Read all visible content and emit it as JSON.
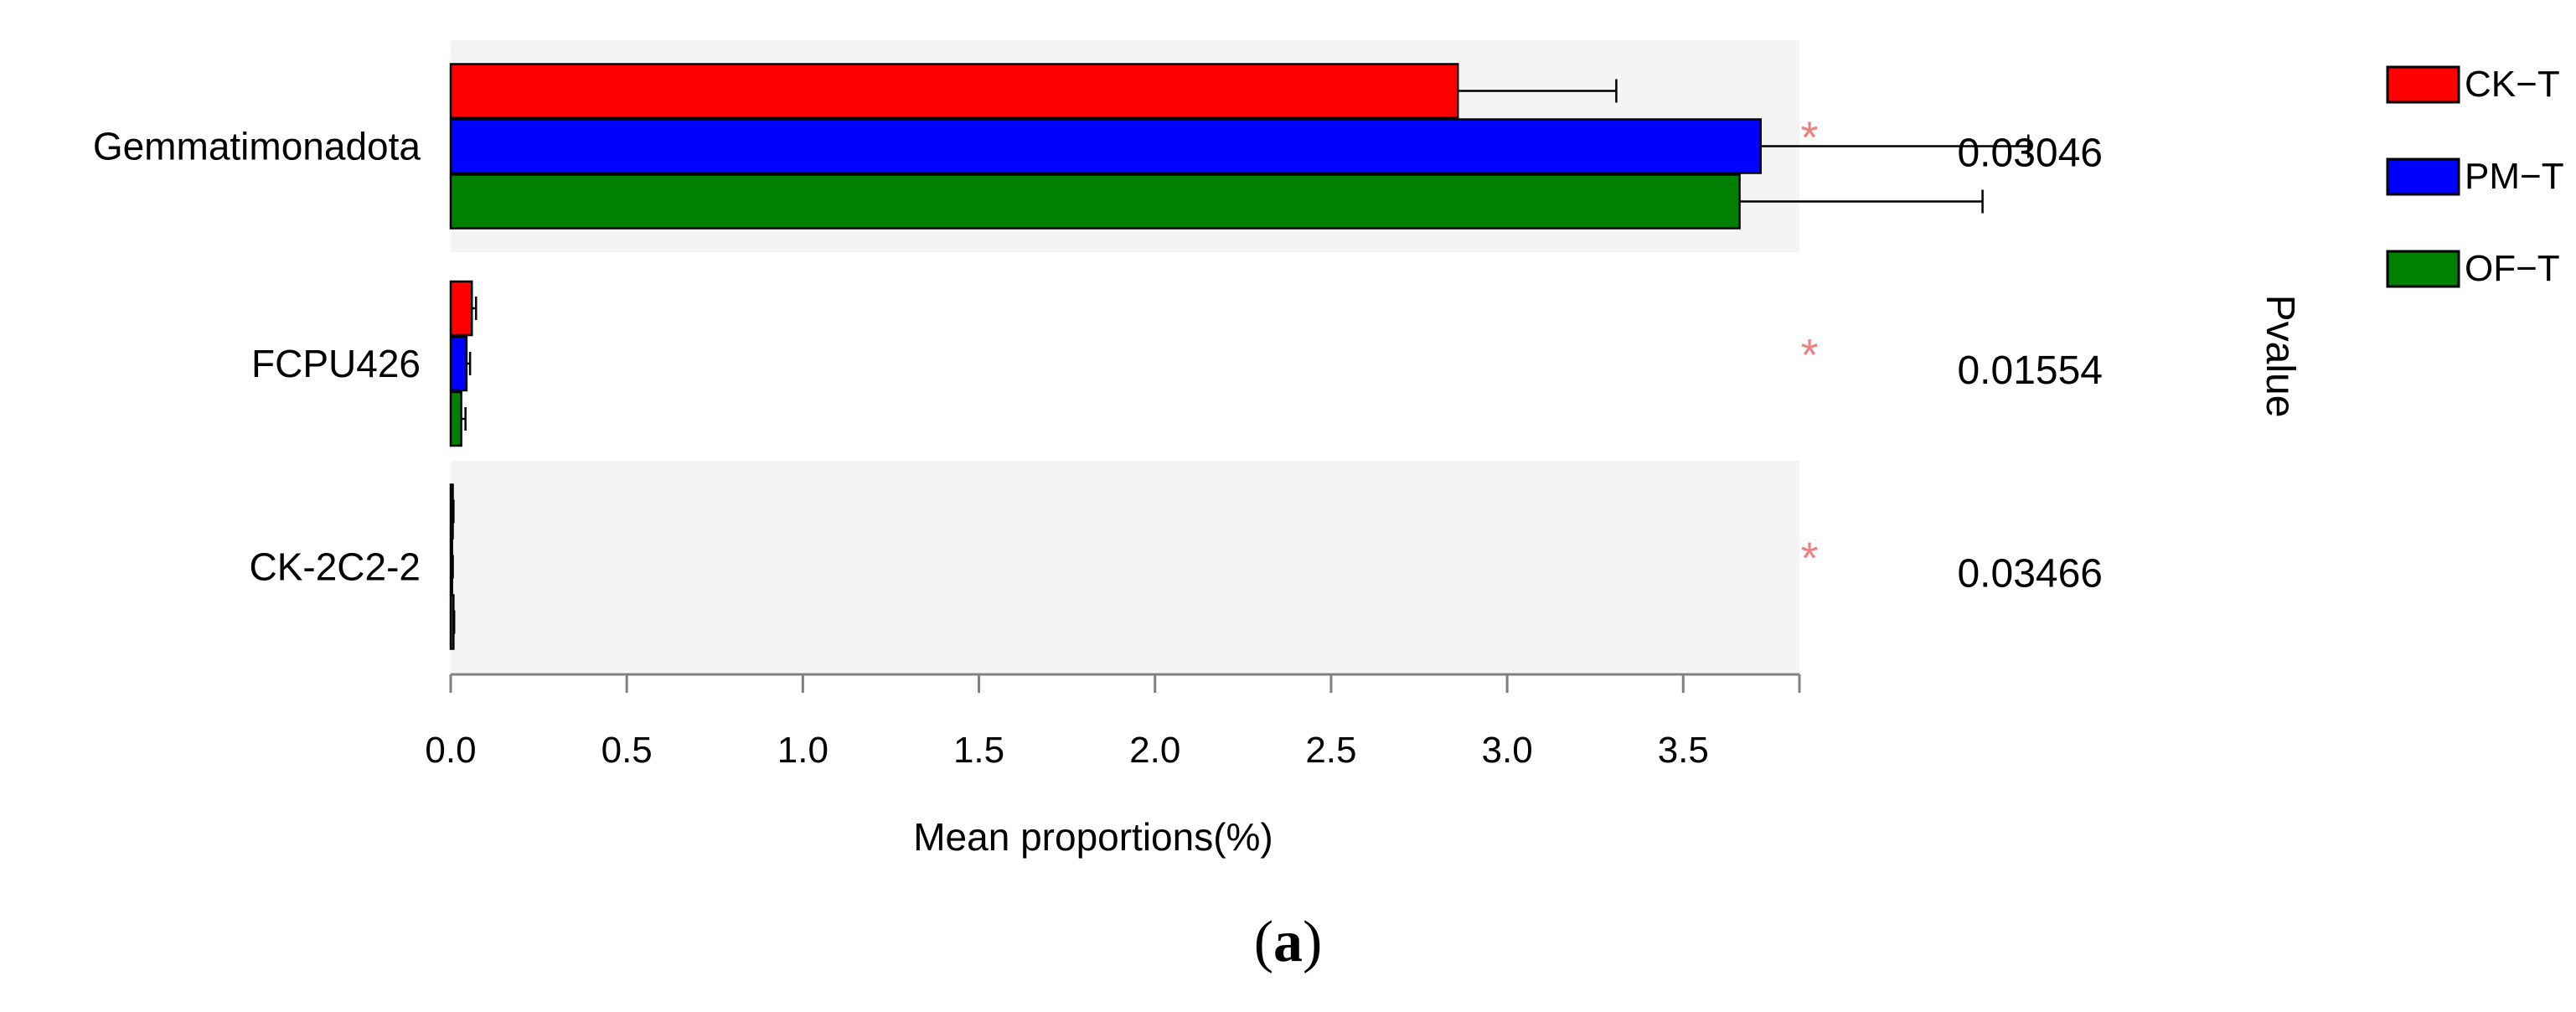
{
  "chart_data": {
    "type": "bar",
    "orientation": "horizontal",
    "categories": [
      "Gemmatimonadota",
      "FCPU426",
      "CK-2C2-2"
    ],
    "series": [
      {
        "name": "CK−T",
        "color": "#ff0000",
        "values": [
          2.86,
          0.06,
          0.006
        ],
        "errors": [
          0.45,
          0.012,
          0.002
        ]
      },
      {
        "name": "PM−T",
        "color": "#0000ff",
        "values": [
          3.72,
          0.045,
          0.004
        ],
        "errors": [
          0.76,
          0.01,
          0.002
        ]
      },
      {
        "name": "OF−T",
        "color": "#008000",
        "values": [
          3.66,
          0.03,
          0.008
        ],
        "errors": [
          0.69,
          0.012,
          0.002
        ]
      }
    ],
    "xlabel": "Mean proportions(%)",
    "xlim": [
      0,
      3.83
    ],
    "xticks": [
      "0.0",
      "0.5",
      "1.0",
      "1.5",
      "2.0",
      "2.5",
      "3.0",
      "3.5"
    ],
    "pvalue_label": "Pvalue",
    "pvalues": [
      "0.03046",
      "0.01554",
      "0.03466"
    ],
    "significance_marker": "*",
    "legend_position": "right",
    "grid": false
  },
  "caption": {
    "open": "(",
    "letter": "a",
    "close": ")"
  },
  "colors": {
    "band": "#f4f4f4",
    "star": "#f08080"
  }
}
